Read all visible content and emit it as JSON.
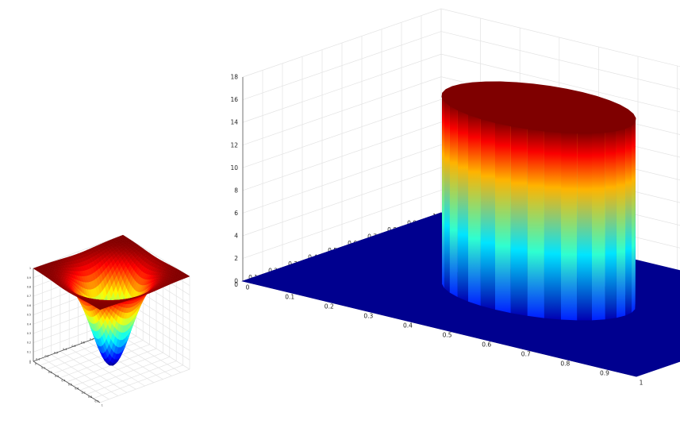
{
  "chart_data": [
    {
      "type": "surface",
      "title": "",
      "xlabel": "",
      "ylabel": "",
      "zlabel": "",
      "x_range": [
        0,
        1
      ],
      "y_range": [
        0,
        1
      ],
      "z_range": [
        0,
        1
      ],
      "x_ticks": [
        "0",
        "0.1",
        "0.2",
        "0.3",
        "0.4",
        "0.5",
        "0.6",
        "0.7",
        "0.8",
        "0.9",
        "1"
      ],
      "y_ticks": [
        "0",
        "0.1",
        "0.2",
        "0.3",
        "0.4",
        "0.5",
        "0.6",
        "0.7",
        "0.8",
        "0.9",
        "1"
      ],
      "z_ticks": [
        "0",
        "0.1",
        "0.2",
        "0.3",
        "0.4",
        "0.5",
        "0.6",
        "0.7",
        "0.8",
        "0.9",
        "1"
      ],
      "surface": {
        "shape": "inverted-gaussian",
        "center": [
          0.5,
          0.5
        ],
        "min_z": 0.0,
        "max_z": 1.0,
        "sigma": 0.18
      },
      "colormap": "jet",
      "grid": true
    },
    {
      "type": "surface",
      "title": "",
      "xlabel": "",
      "ylabel": "",
      "zlabel": "",
      "x_range": [
        0,
        1
      ],
      "y_range": [
        0,
        1
      ],
      "z_range": [
        0,
        18
      ],
      "x_ticks": [
        "0",
        "0.1",
        "0.2",
        "0.3",
        "0.4",
        "0.5",
        "0.6",
        "0.7",
        "0.8",
        "0.9",
        "1"
      ],
      "y_ticks": [
        "0",
        "0.1",
        "0.2",
        "0.3",
        "0.4",
        "0.5",
        "0.6",
        "0.7",
        "0.8",
        "0.9",
        "1"
      ],
      "z_ticks": [
        "0",
        "2",
        "4",
        "6",
        "8",
        "10",
        "12",
        "14",
        "16",
        "18"
      ],
      "surface": {
        "shape": "cylinder",
        "center": [
          0.5,
          0.5
        ],
        "radius": 0.22,
        "top_z": 16.5,
        "base_z": 0
      },
      "colormap": "jet",
      "grid": true
    }
  ]
}
